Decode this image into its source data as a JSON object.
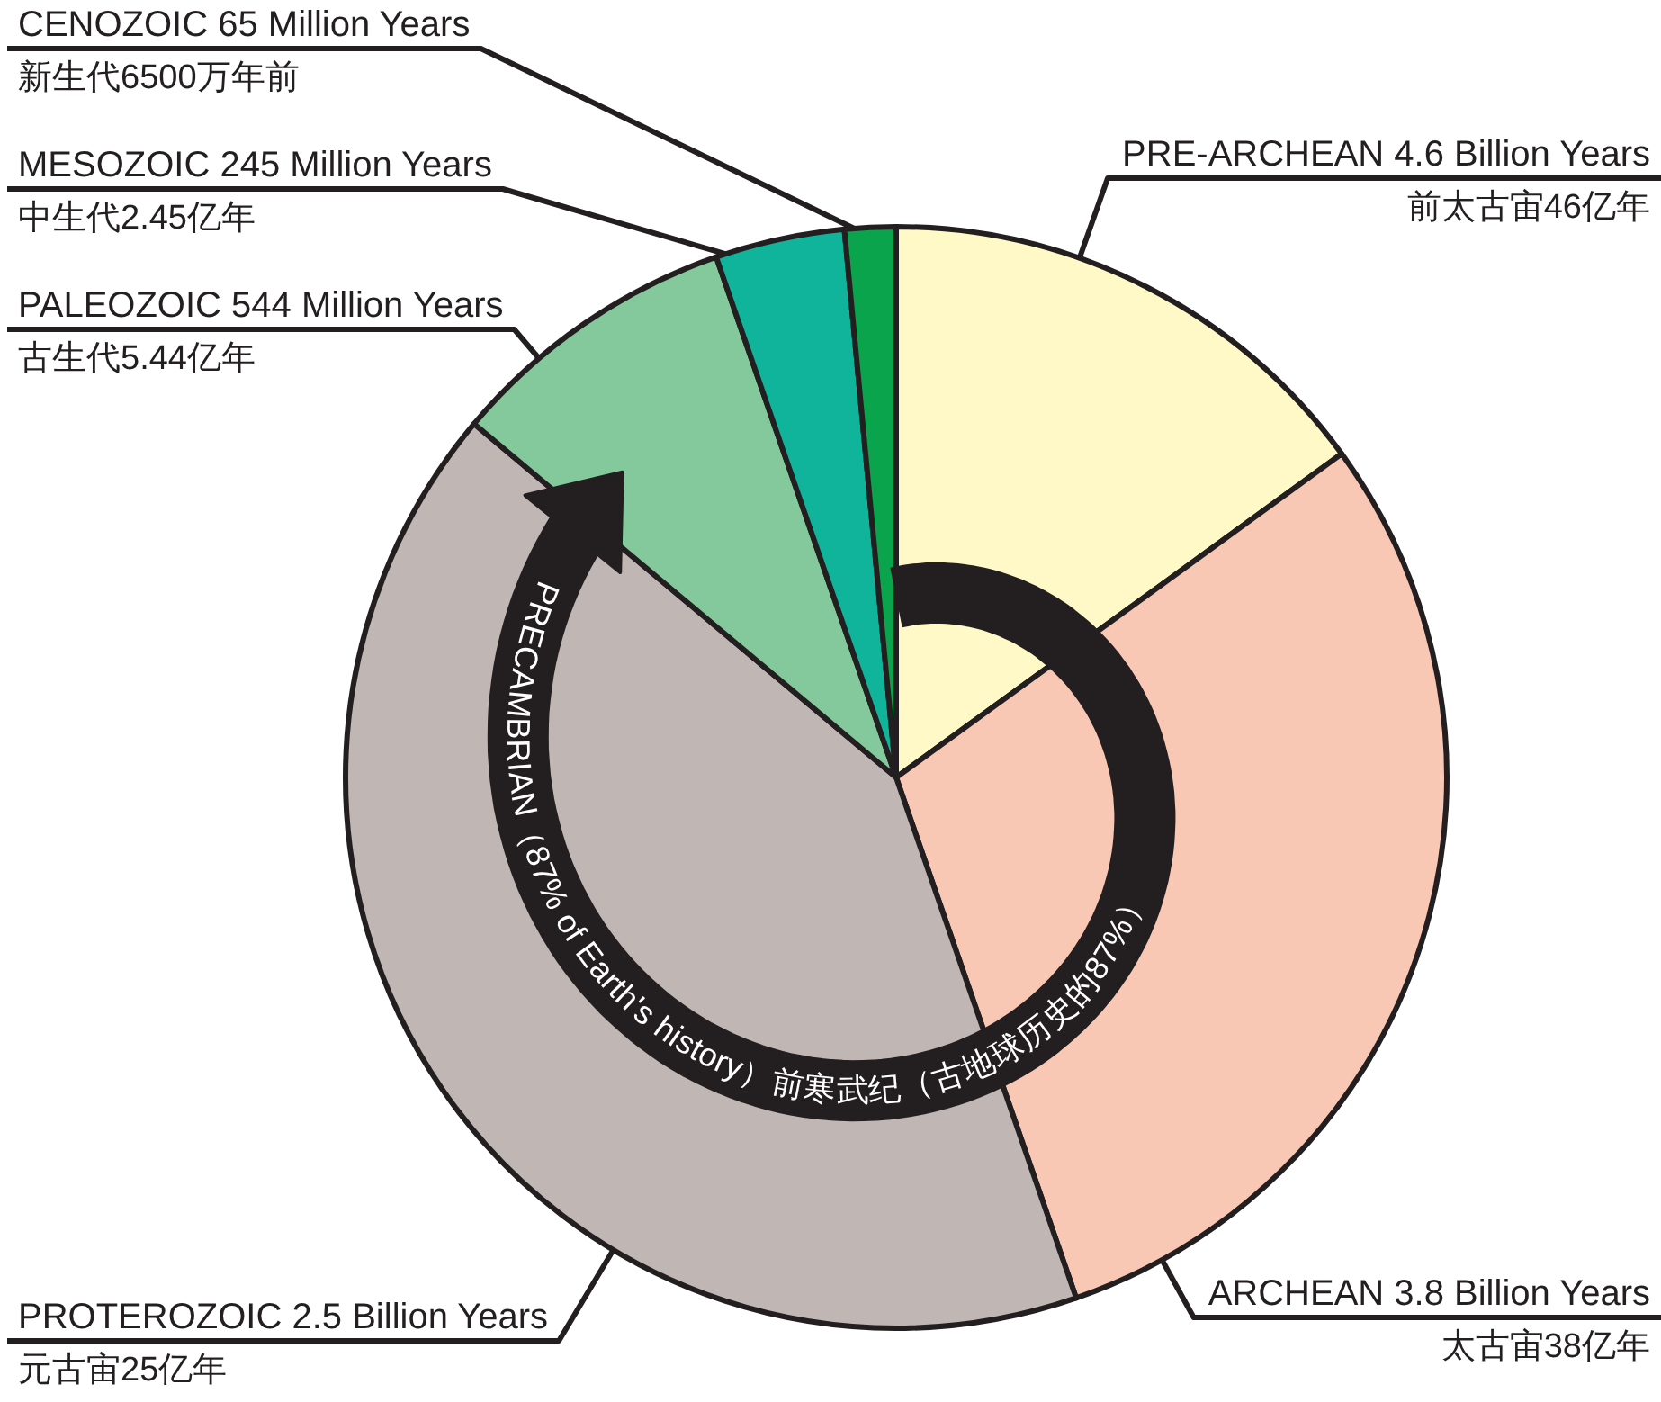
{
  "chart_data": {
    "type": "pie",
    "categories": [
      "PRE-ARCHEAN 4.6  Billion Years\n前太古宙46亿年",
      "ARCHEAN 3.8 Billion Years\n太古宙38亿年",
      "PROTEROZOIC 2.5 Billion Years\n元古宙25亿年",
      "PALEOZOIC 544 Million Years\n古生代5.44亿年",
      "MESOZOIC 245 Million Years\n中生代2.45亿年",
      "CENOZOIC 65  Million Years\n新生代6500万年前"
    ],
    "values": [
      15,
      29.7,
      41.4,
      8.6,
      3.8,
      1.5
    ],
    "colors": [
      "#fff9c8",
      "#f9c8b4",
      "#c0b6b3",
      "#84c99c",
      "#10b49a",
      "#0aa44c"
    ],
    "annotations": [
      "PRECAMBRIAN（87% of Earth's history）前寒武纪（古地球历史的87%）"
    ]
  }
}
